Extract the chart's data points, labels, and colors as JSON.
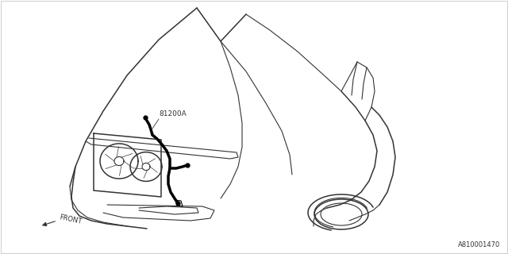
{
  "bg_color": "#ffffff",
  "lc": "#333333",
  "hc": "#000000",
  "label_81200A": "81200A",
  "label_front": "FRONT",
  "label_part_no": "A810001470",
  "fig_width": 6.4,
  "fig_height": 3.2,
  "dpi": 100
}
